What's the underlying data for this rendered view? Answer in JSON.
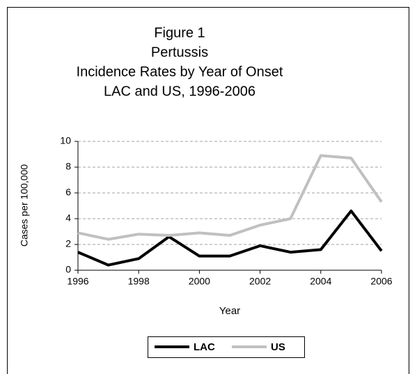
{
  "chart_data": {
    "type": "line",
    "title": [
      "Figure 1",
      "Pertussis",
      "Incidence Rates by Year of Onset",
      "LAC and US, 1996-2006"
    ],
    "x_label": "Year",
    "y_label": "Cases per 100,000",
    "x": [
      1996,
      1997,
      1998,
      1999,
      2000,
      2001,
      2002,
      2003,
      2004,
      2005,
      2006
    ],
    "series": [
      {
        "name": "LAC",
        "color": "#000000",
        "values": [
          1.4,
          0.4,
          0.9,
          2.6,
          1.1,
          1.1,
          1.9,
          1.4,
          1.6,
          4.6,
          1.5
        ]
      },
      {
        "name": "US",
        "color": "#c0c0c0",
        "values": [
          2.9,
          2.4,
          2.8,
          2.7,
          2.9,
          2.7,
          3.5,
          4.0,
          8.9,
          8.7,
          5.3
        ]
      }
    ],
    "xlim": [
      1996,
      2006
    ],
    "xticks": [
      1996,
      1998,
      2000,
      2002,
      2004,
      2006
    ],
    "ylim": [
      0,
      10
    ],
    "yticks": [
      0,
      2,
      4,
      6,
      8,
      10
    ],
    "grid": true,
    "legend": "bottom"
  }
}
